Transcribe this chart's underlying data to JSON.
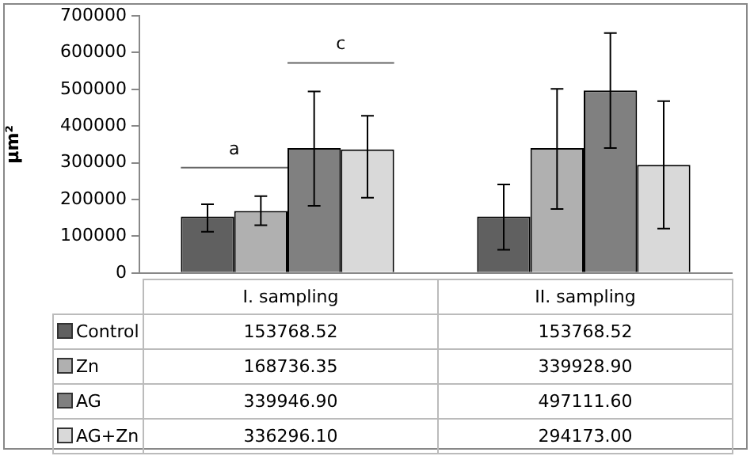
{
  "chart_data": {
    "type": "bar",
    "ylabel": "µm²",
    "categories": [
      "I. sampling",
      "II. sampling"
    ],
    "ylim": [
      0,
      700000
    ],
    "yticks": [
      0,
      100000,
      200000,
      300000,
      400000,
      500000,
      600000,
      700000
    ],
    "grid": false,
    "legend": "bottom left",
    "data_labels": true,
    "series": [
      {
        "name": "Control",
        "color": "#606060",
        "values": [
          153768.52,
          153768.52
        ],
        "value_labels": [
          "153768.52",
          "153768.52"
        ],
        "errors": [
          [
            112000,
            187000
          ],
          [
            63000,
            241000
          ]
        ]
      },
      {
        "name": "Zn",
        "color": "#b0b0b0",
        "values": [
          168736.35,
          339928.9
        ],
        "value_labels": [
          "168736.35",
          "339928.90"
        ],
        "errors": [
          [
            130000,
            209000
          ],
          [
            174000,
            501000
          ]
        ]
      },
      {
        "name": "AG",
        "color": "#808080",
        "values": [
          339946.9,
          497111.6
        ],
        "value_labels": [
          "339946.90",
          "497111.60"
        ],
        "errors": [
          [
            183000,
            494000
          ],
          [
            340000,
            653000
          ]
        ]
      },
      {
        "name": "AG+Zn",
        "color": "#d9d9d9",
        "values": [
          336296.1,
          294173.0
        ],
        "value_labels": [
          "336296.10",
          "294173.00"
        ],
        "errors": [
          [
            205000,
            428000
          ],
          [
            121000,
            468000
          ]
        ]
      }
    ],
    "annotations": [
      "a",
      "c"
    ]
  }
}
